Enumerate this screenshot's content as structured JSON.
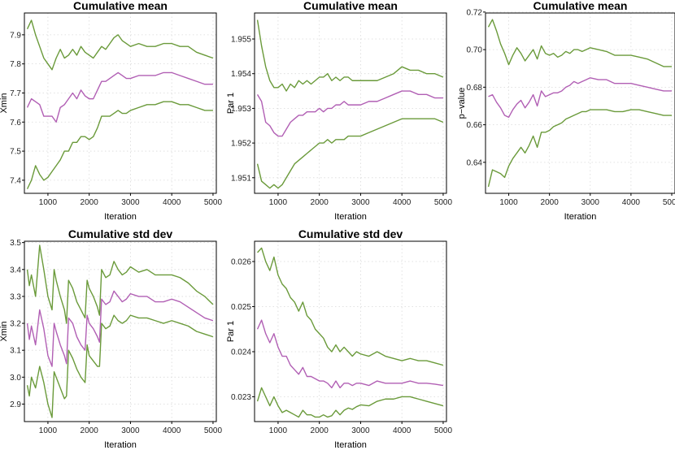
{
  "chart_data": [
    {
      "type": "line",
      "title": "Cumulative mean",
      "xlabel": "Iteration",
      "ylabel": "Xmin",
      "xlim": [
        430,
        5080
      ],
      "ylim": [
        7.355,
        7.975
      ],
      "x_ticks": [
        1000,
        2000,
        3000,
        4000,
        5000
      ],
      "y_ticks": [
        7.4,
        7.5,
        7.6,
        7.7,
        7.8,
        7.9
      ],
      "grid": true,
      "x": [
        500,
        600,
        700,
        800,
        900,
        1000,
        1100,
        1200,
        1300,
        1400,
        1500,
        1600,
        1700,
        1800,
        1900,
        2000,
        2100,
        2200,
        2300,
        2400,
        2500,
        2600,
        2700,
        2800,
        2900,
        3000,
        3200,
        3400,
        3600,
        3800,
        4000,
        4200,
        4400,
        4600,
        4800,
        5000
      ],
      "series": [
        {
          "role": "upper",
          "color": "#6a9a3a",
          "values": [
            7.92,
            7.95,
            7.9,
            7.86,
            7.82,
            7.8,
            7.78,
            7.82,
            7.85,
            7.82,
            7.83,
            7.85,
            7.83,
            7.86,
            7.84,
            7.83,
            7.82,
            7.84,
            7.86,
            7.85,
            7.87,
            7.89,
            7.9,
            7.88,
            7.87,
            7.86,
            7.87,
            7.86,
            7.86,
            7.87,
            7.87,
            7.86,
            7.86,
            7.84,
            7.83,
            7.82
          ]
        },
        {
          "role": "mean",
          "color": "#b15fb4",
          "values": [
            7.65,
            7.68,
            7.67,
            7.66,
            7.62,
            7.62,
            7.62,
            7.6,
            7.65,
            7.66,
            7.68,
            7.7,
            7.68,
            7.71,
            7.69,
            7.68,
            7.68,
            7.71,
            7.74,
            7.74,
            7.75,
            7.76,
            7.77,
            7.76,
            7.75,
            7.75,
            7.76,
            7.76,
            7.76,
            7.77,
            7.77,
            7.76,
            7.75,
            7.74,
            7.73,
            7.73
          ]
        },
        {
          "role": "lower",
          "color": "#6a9a3a",
          "values": [
            7.37,
            7.4,
            7.45,
            7.42,
            7.4,
            7.41,
            7.43,
            7.45,
            7.47,
            7.5,
            7.5,
            7.53,
            7.53,
            7.55,
            7.55,
            7.54,
            7.55,
            7.58,
            7.62,
            7.62,
            7.62,
            7.63,
            7.64,
            7.63,
            7.63,
            7.64,
            7.65,
            7.66,
            7.66,
            7.67,
            7.67,
            7.66,
            7.66,
            7.65,
            7.64,
            7.64
          ]
        }
      ]
    },
    {
      "type": "line",
      "title": "Cumulative mean",
      "xlabel": "Iteration",
      "ylabel": "Par 1",
      "xlim": [
        430,
        5080
      ],
      "ylim": [
        1.95055,
        1.95575
      ],
      "x_ticks": [
        1000,
        2000,
        3000,
        4000,
        5000
      ],
      "y_ticks": [
        1.951,
        1.952,
        1.953,
        1.954,
        1.955
      ],
      "grid": true,
      "x": [
        500,
        600,
        700,
        800,
        900,
        1000,
        1100,
        1200,
        1300,
        1400,
        1500,
        1600,
        1700,
        1800,
        1900,
        2000,
        2100,
        2200,
        2300,
        2400,
        2500,
        2600,
        2700,
        2800,
        2900,
        3000,
        3200,
        3400,
        3600,
        3800,
        4000,
        4200,
        4400,
        4600,
        4800,
        5000
      ],
      "series": [
        {
          "role": "upper",
          "color": "#6a9a3a",
          "values": [
            1.95555,
            1.9548,
            1.9542,
            1.9538,
            1.9536,
            1.9536,
            1.9537,
            1.9535,
            1.9537,
            1.9536,
            1.9538,
            1.9537,
            1.9538,
            1.9537,
            1.9538,
            1.9539,
            1.9539,
            1.954,
            1.9538,
            1.9539,
            1.9538,
            1.9539,
            1.9539,
            1.9538,
            1.9538,
            1.9538,
            1.9538,
            1.9538,
            1.9539,
            1.954,
            1.9542,
            1.9541,
            1.9541,
            1.954,
            1.954,
            1.9539
          ]
        },
        {
          "role": "mean",
          "color": "#b15fb4",
          "values": [
            1.9534,
            1.9532,
            1.9526,
            1.9525,
            1.9523,
            1.9522,
            1.9522,
            1.9524,
            1.9526,
            1.9527,
            1.9528,
            1.9528,
            1.9529,
            1.9529,
            1.9529,
            1.953,
            1.9529,
            1.953,
            1.953,
            1.9531,
            1.9531,
            1.9532,
            1.9531,
            1.9531,
            1.9531,
            1.9531,
            1.9532,
            1.9532,
            1.9533,
            1.9534,
            1.9535,
            1.9535,
            1.9534,
            1.9534,
            1.9533,
            1.9533
          ]
        },
        {
          "role": "lower",
          "color": "#6a9a3a",
          "values": [
            1.9514,
            1.9509,
            1.9508,
            1.9507,
            1.9508,
            1.9507,
            1.9508,
            1.951,
            1.9512,
            1.9514,
            1.9515,
            1.9516,
            1.9517,
            1.9518,
            1.9519,
            1.952,
            1.952,
            1.9521,
            1.952,
            1.9521,
            1.9521,
            1.9521,
            1.9522,
            1.9522,
            1.9522,
            1.9522,
            1.9523,
            1.9524,
            1.9525,
            1.9526,
            1.9527,
            1.9527,
            1.9527,
            1.9527,
            1.9527,
            1.9526
          ]
        }
      ]
    },
    {
      "type": "line",
      "title": "Cumulative mean",
      "xlabel": "Iteration",
      "ylabel": "p−value",
      "xlim": [
        430,
        5080
      ],
      "ylim": [
        0.6235,
        0.7195
      ],
      "x_ticks": [
        1000,
        2000,
        3000,
        4000,
        5000
      ],
      "y_ticks": [
        0.64,
        0.66,
        0.68,
        0.7,
        0.72
      ],
      "grid": true,
      "x": [
        500,
        600,
        700,
        800,
        900,
        1000,
        1100,
        1200,
        1300,
        1400,
        1500,
        1600,
        1700,
        1800,
        1900,
        2000,
        2100,
        2200,
        2300,
        2400,
        2500,
        2600,
        2700,
        2800,
        2900,
        3000,
        3200,
        3400,
        3600,
        3800,
        4000,
        4200,
        4400,
        4600,
        4800,
        5000
      ],
      "series": [
        {
          "role": "upper",
          "color": "#6a9a3a",
          "values": [
            0.712,
            0.716,
            0.71,
            0.703,
            0.698,
            0.692,
            0.697,
            0.701,
            0.698,
            0.694,
            0.697,
            0.7,
            0.695,
            0.702,
            0.698,
            0.697,
            0.698,
            0.696,
            0.697,
            0.699,
            0.698,
            0.7,
            0.7,
            0.699,
            0.7,
            0.701,
            0.7,
            0.699,
            0.697,
            0.697,
            0.697,
            0.696,
            0.695,
            0.693,
            0.691,
            0.691
          ]
        },
        {
          "role": "mean",
          "color": "#b15fb4",
          "values": [
            0.675,
            0.676,
            0.672,
            0.669,
            0.665,
            0.664,
            0.668,
            0.671,
            0.673,
            0.669,
            0.672,
            0.676,
            0.67,
            0.678,
            0.675,
            0.676,
            0.677,
            0.677,
            0.678,
            0.68,
            0.681,
            0.683,
            0.682,
            0.683,
            0.684,
            0.685,
            0.684,
            0.684,
            0.682,
            0.682,
            0.682,
            0.681,
            0.68,
            0.679,
            0.678,
            0.678
          ]
        },
        {
          "role": "lower",
          "color": "#6a9a3a",
          "values": [
            0.627,
            0.636,
            0.635,
            0.634,
            0.632,
            0.638,
            0.642,
            0.645,
            0.648,
            0.645,
            0.649,
            0.654,
            0.648,
            0.656,
            0.656,
            0.657,
            0.659,
            0.66,
            0.661,
            0.663,
            0.664,
            0.665,
            0.666,
            0.667,
            0.667,
            0.668,
            0.668,
            0.668,
            0.667,
            0.667,
            0.668,
            0.668,
            0.667,
            0.666,
            0.665,
            0.665
          ]
        }
      ]
    },
    {
      "type": "line",
      "title": "Cumulative std dev",
      "xlabel": "Iteration",
      "ylabel": "Xmin",
      "xlim": [
        430,
        5080
      ],
      "ylim": [
        2.835,
        3.505
      ],
      "x_ticks": [
        1000,
        2000,
        3000,
        4000,
        5000
      ],
      "y_ticks": [
        2.9,
        3.0,
        3.1,
        3.2,
        3.3,
        3.4,
        3.5
      ],
      "grid": true,
      "x": [
        500,
        550,
        600,
        700,
        800,
        900,
        1000,
        1100,
        1150,
        1200,
        1300,
        1400,
        1450,
        1500,
        1600,
        1700,
        1800,
        1900,
        1950,
        2000,
        2100,
        2200,
        2250,
        2300,
        2400,
        2500,
        2600,
        2700,
        2800,
        2900,
        3000,
        3200,
        3400,
        3600,
        3800,
        4000,
        4200,
        4400,
        4600,
        4800,
        5000
      ],
      "series": [
        {
          "role": "upper",
          "color": "#6a9a3a",
          "values": [
            3.4,
            3.34,
            3.38,
            3.3,
            3.49,
            3.4,
            3.3,
            3.25,
            3.4,
            3.36,
            3.3,
            3.25,
            3.2,
            3.36,
            3.33,
            3.28,
            3.25,
            3.22,
            3.36,
            3.33,
            3.3,
            3.26,
            3.23,
            3.4,
            3.37,
            3.38,
            3.43,
            3.4,
            3.38,
            3.39,
            3.41,
            3.39,
            3.4,
            3.38,
            3.38,
            3.38,
            3.37,
            3.35,
            3.32,
            3.3,
            3.27
          ]
        },
        {
          "role": "mean",
          "color": "#b15fb4",
          "values": [
            3.2,
            3.14,
            3.19,
            3.12,
            3.25,
            3.18,
            3.08,
            3.04,
            3.2,
            3.17,
            3.12,
            3.08,
            3.05,
            3.22,
            3.2,
            3.15,
            3.12,
            3.1,
            3.23,
            3.2,
            3.18,
            3.15,
            3.13,
            3.29,
            3.27,
            3.28,
            3.32,
            3.3,
            3.28,
            3.29,
            3.31,
            3.3,
            3.3,
            3.28,
            3.28,
            3.29,
            3.28,
            3.26,
            3.24,
            3.22,
            3.21
          ]
        },
        {
          "role": "lower",
          "color": "#6a9a3a",
          "values": [
            2.97,
            2.93,
            3.0,
            2.96,
            3.04,
            2.98,
            2.9,
            2.85,
            3.02,
            3.0,
            2.96,
            2.92,
            2.93,
            3.1,
            3.07,
            3.03,
            3.0,
            2.98,
            3.12,
            3.08,
            3.06,
            3.04,
            3.04,
            3.2,
            3.18,
            3.19,
            3.23,
            3.21,
            3.2,
            3.21,
            3.23,
            3.22,
            3.22,
            3.21,
            3.2,
            3.21,
            3.2,
            3.19,
            3.17,
            3.16,
            3.15
          ]
        }
      ]
    },
    {
      "type": "line",
      "title": "Cumulative std dev",
      "xlabel": "Iteration",
      "ylabel": "Par 1",
      "xlim": [
        430,
        5080
      ],
      "ylim": [
        0.02245,
        0.02645
      ],
      "x_ticks": [
        1000,
        2000,
        3000,
        4000,
        5000
      ],
      "y_ticks": [
        0.023,
        0.024,
        0.025,
        0.026
      ],
      "grid": true,
      "x": [
        500,
        600,
        700,
        800,
        900,
        1000,
        1100,
        1200,
        1300,
        1400,
        1500,
        1600,
        1700,
        1800,
        1900,
        2000,
        2100,
        2200,
        2300,
        2400,
        2500,
        2600,
        2700,
        2800,
        2900,
        3000,
        3200,
        3400,
        3600,
        3800,
        4000,
        4200,
        4400,
        4600,
        4800,
        5000
      ],
      "series": [
        {
          "role": "upper",
          "color": "#6a9a3a",
          "values": [
            0.0262,
            0.0263,
            0.026,
            0.0258,
            0.0261,
            0.0257,
            0.0255,
            0.0254,
            0.0252,
            0.0251,
            0.0249,
            0.0251,
            0.0248,
            0.0247,
            0.0245,
            0.0244,
            0.0243,
            0.0241,
            0.024,
            0.02415,
            0.024,
            0.0241,
            0.024,
            0.0239,
            0.024,
            0.02395,
            0.0239,
            0.024,
            0.0239,
            0.02385,
            0.0238,
            0.02385,
            0.0238,
            0.0238,
            0.02375,
            0.0237
          ]
        },
        {
          "role": "mean",
          "color": "#b15fb4",
          "values": [
            0.0245,
            0.0247,
            0.0244,
            0.0242,
            0.0244,
            0.0241,
            0.0239,
            0.0239,
            0.0237,
            0.0236,
            0.0235,
            0.02365,
            0.02345,
            0.02345,
            0.0234,
            0.02335,
            0.02335,
            0.0233,
            0.0232,
            0.02335,
            0.0232,
            0.0233,
            0.0233,
            0.02325,
            0.0233,
            0.0233,
            0.02325,
            0.02335,
            0.0233,
            0.0233,
            0.0233,
            0.02335,
            0.0233,
            0.0233,
            0.02328,
            0.02325
          ]
        },
        {
          "role": "lower",
          "color": "#6a9a3a",
          "values": [
            0.0229,
            0.0232,
            0.023,
            0.0228,
            0.023,
            0.0228,
            0.02265,
            0.0227,
            0.02265,
            0.0226,
            0.02255,
            0.0227,
            0.0226,
            0.0226,
            0.02255,
            0.02255,
            0.0226,
            0.02255,
            0.02258,
            0.0227,
            0.0226,
            0.0227,
            0.02275,
            0.02272,
            0.02278,
            0.02282,
            0.0228,
            0.0229,
            0.02295,
            0.02295,
            0.023,
            0.023,
            0.02295,
            0.0229,
            0.02285,
            0.0228
          ]
        }
      ]
    }
  ]
}
